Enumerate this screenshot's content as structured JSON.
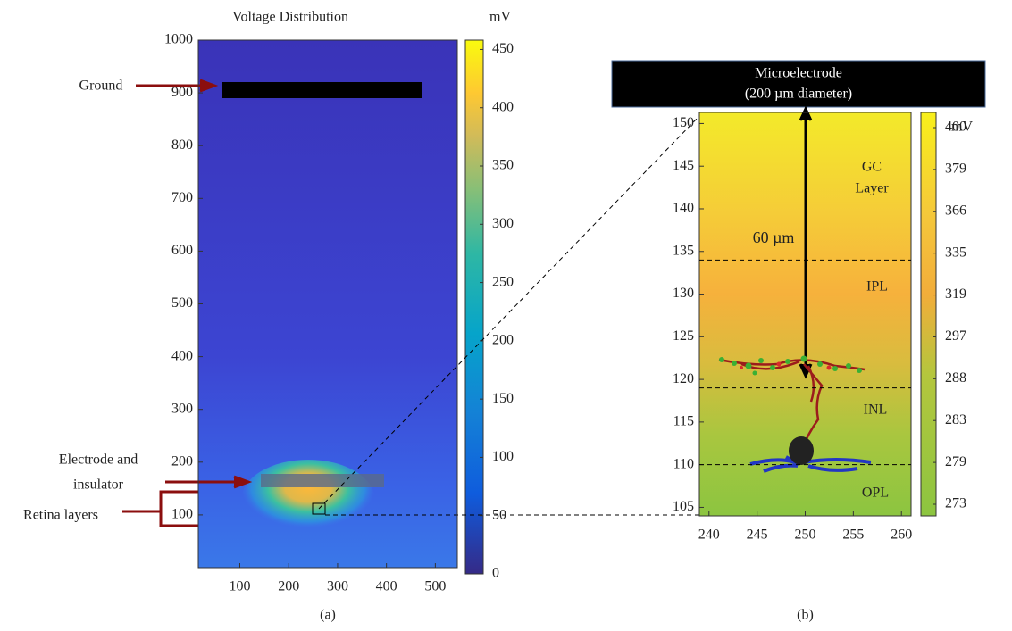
{
  "chart_data": [
    {
      "type": "heatmap",
      "title": "Voltage Distribution",
      "xlim": [
        15,
        545
      ],
      "xticks": [
        100,
        200,
        300,
        400,
        500
      ],
      "ylim": [
        0,
        1000
      ],
      "yticks": [
        100,
        200,
        300,
        400,
        500,
        600,
        700,
        800,
        900,
        1000
      ],
      "colorbar": {
        "label": "mV",
        "lim": [
          0,
          458
        ],
        "ticks": [
          0,
          50,
          100,
          150,
          200,
          250,
          300,
          350,
          400,
          450
        ]
      },
      "annotations": [
        "Ground",
        "Electrode and",
        "insulator",
        "Retina layers"
      ],
      "caption": "(a)"
    },
    {
      "type": "heatmap",
      "xlim": [
        239,
        261
      ],
      "xticks": [
        240,
        245,
        250,
        255,
        260
      ],
      "ylim": [
        104,
        151.3
      ],
      "yticks": [
        105,
        110,
        115,
        120,
        125,
        130,
        135,
        140,
        145,
        150
      ],
      "colorbar": {
        "label": "mV",
        "ticks": [
          273,
          279,
          283,
          288,
          297,
          319,
          335,
          366,
          379,
          400
        ]
      },
      "annotations": [
        "Microelectrode",
        "(200 µm diameter)",
        "60 µm",
        "GC",
        "Layer",
        "IPL",
        "INL",
        "OPL"
      ],
      "layer_boundaries": [
        134,
        119,
        110
      ],
      "caption": "(b)"
    }
  ]
}
